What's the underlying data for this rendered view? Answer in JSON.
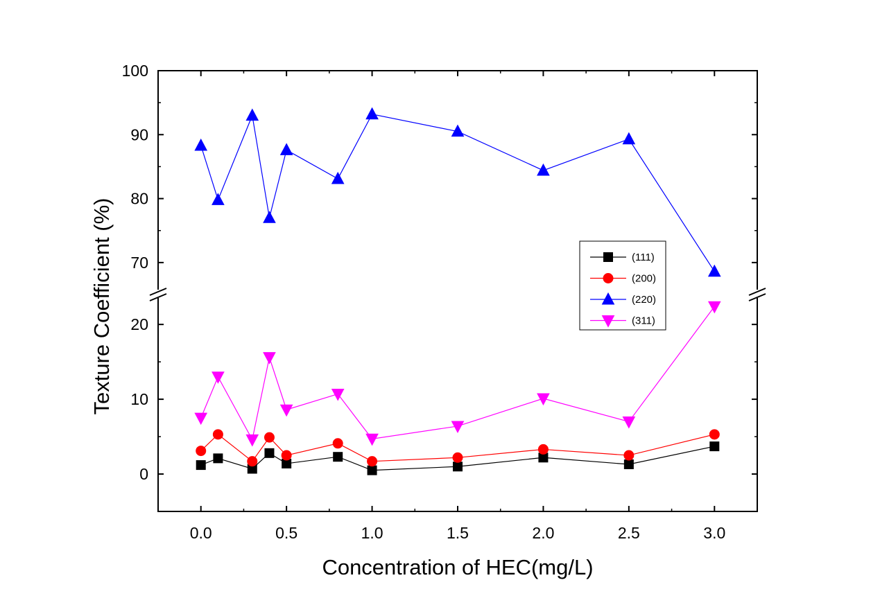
{
  "chart_data": {
    "type": "line",
    "xlabel": "Concentration of HEC(mg/L)",
    "ylabel": "Texture Coefficient (%)",
    "x": [
      0.0,
      0.1,
      0.3,
      0.4,
      0.5,
      0.8,
      1.0,
      1.5,
      2.0,
      2.5,
      3.0
    ],
    "xlim": [
      -0.25,
      3.25
    ],
    "xticks": [
      "0.0",
      "0.5",
      "1.0",
      "1.5",
      "2.0",
      "2.5",
      "3.0"
    ],
    "broken_y_axis": true,
    "ylim_lower": [
      -5,
      24
    ],
    "ylim_upper": [
      65,
      100
    ],
    "yticks_lower": [
      "0",
      "10",
      "20"
    ],
    "yticks_upper": [
      "70",
      "80",
      "90",
      "100"
    ],
    "grid": false,
    "legend_position": "right",
    "series": [
      {
        "name": "(111)",
        "color": "#000000",
        "marker": "square",
        "values": [
          1.2,
          2.1,
          0.7,
          2.8,
          1.4,
          2.3,
          0.5,
          1.0,
          2.2,
          1.3,
          3.7
        ]
      },
      {
        "name": "(200)",
        "color": "#ff0000",
        "marker": "circle",
        "values": [
          3.1,
          5.3,
          1.7,
          4.9,
          2.5,
          4.1,
          1.7,
          2.2,
          3.3,
          2.5,
          5.3
        ]
      },
      {
        "name": "(220)",
        "color": "#0000ff",
        "marker": "triangle-up",
        "values": [
          88.3,
          79.8,
          93.0,
          77.0,
          87.6,
          83.1,
          93.2,
          90.5,
          84.4,
          89.3,
          68.6
        ]
      },
      {
        "name": "(311)",
        "color": "#ff00ff",
        "marker": "triangle-down",
        "values": [
          7.5,
          13.0,
          4.6,
          15.6,
          8.6,
          10.7,
          4.7,
          6.4,
          10.1,
          7.0,
          22.4
        ]
      }
    ]
  }
}
